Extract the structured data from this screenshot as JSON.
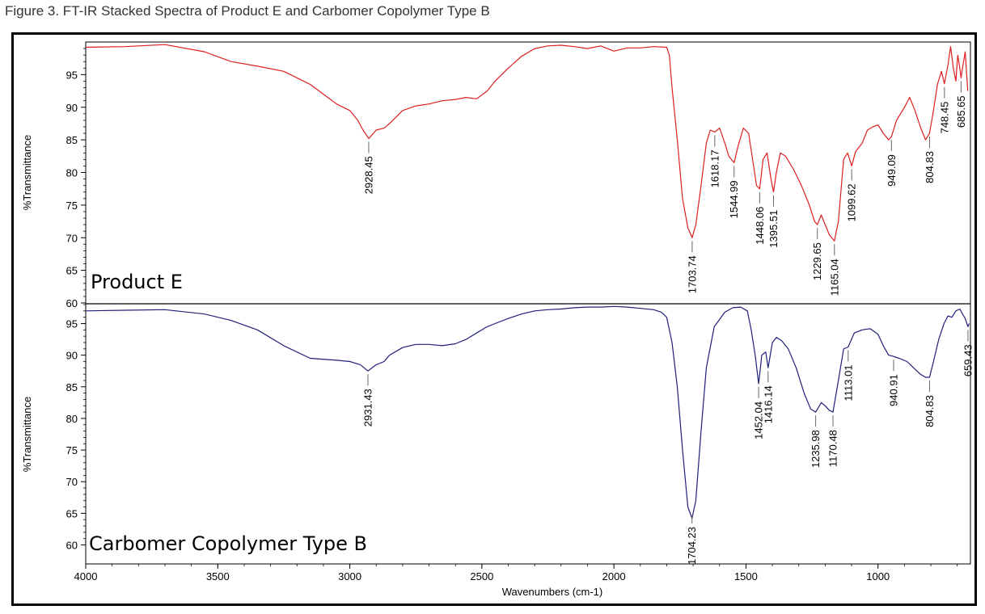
{
  "figure_title": "Figure 3. FT-IR Stacked Spectra of Product E and Carbomer Copolymer Type B",
  "chart_data": {
    "type": "line",
    "xlabel": "Wavenumbers (cm-1)",
    "xlim": [
      4000,
      650
    ],
    "x_ticks": [
      4000,
      3500,
      3000,
      2500,
      2000,
      1500,
      1000
    ],
    "x_tick_labels": [
      "4000",
      "3500",
      "3000",
      "2500",
      "2000",
      "1500",
      "1000"
    ],
    "panels": [
      {
        "label": "Product E",
        "ylabel": "%Transmittance",
        "ylim": [
          60,
          100
        ],
        "y_ticks": [
          60,
          65,
          70,
          75,
          80,
          85,
          90,
          95
        ],
        "y_tick_labels": [
          "60",
          "65",
          "70",
          "75",
          "80",
          "85",
          "90",
          "95"
        ],
        "color": "#dd1f1f",
        "series": {
          "x": [
            4000,
            3850,
            3700,
            3550,
            3450,
            3350,
            3250,
            3150,
            3050,
            3000,
            2970,
            2950,
            2928,
            2900,
            2870,
            2850,
            2800,
            2750,
            2700,
            2650,
            2600,
            2560,
            2520,
            2480,
            2450,
            2400,
            2350,
            2300,
            2250,
            2200,
            2150,
            2100,
            2050,
            2000,
            1980,
            1950,
            1900,
            1850,
            1800,
            1790,
            1780,
            1760,
            1740,
            1720,
            1703.74,
            1690,
            1670,
            1650,
            1635,
            1618.17,
            1600,
            1580,
            1565,
            1544.99,
            1530,
            1510,
            1490,
            1475,
            1460,
            1448.06,
            1435,
            1420,
            1405,
            1395.51,
            1385,
            1370,
            1350,
            1320,
            1290,
            1260,
            1240,
            1229.65,
            1215,
            1200,
            1185,
            1165.04,
            1150,
            1130,
            1115,
            1099.62,
            1085,
            1060,
            1040,
            1020,
            1000,
            980,
            960,
            949.09,
            930,
            900,
            880,
            860,
            840,
            820,
            804.83,
            790,
            775,
            760,
            748.45,
            735,
            725,
            715,
            705,
            698,
            690,
            685.65,
            680,
            670,
            660
          ],
          "values": [
            99.2,
            99.3,
            99.6,
            98.5,
            97.0,
            96.3,
            95.5,
            93.5,
            90.5,
            89.5,
            88.0,
            86.5,
            85.2,
            86.5,
            86.8,
            87.5,
            89.5,
            90.2,
            90.5,
            91.0,
            91.2,
            91.5,
            91.3,
            92.5,
            94.0,
            96.0,
            97.8,
            99.0,
            99.4,
            99.5,
            99.3,
            99.0,
            99.4,
            98.6,
            98.8,
            99.1,
            99.1,
            99.3,
            99.2,
            98.0,
            93.0,
            85.0,
            76.0,
            71.5,
            70.0,
            72.0,
            78.0,
            84.5,
            86.5,
            86.2,
            86.8,
            84.5,
            82.5,
            81.5,
            84.0,
            86.8,
            86.0,
            82.0,
            78.0,
            77.5,
            82.0,
            83.0,
            79.0,
            77.0,
            80.0,
            83.0,
            82.5,
            80.5,
            78.0,
            75.0,
            72.5,
            72.0,
            73.5,
            72.0,
            70.5,
            69.5,
            72.5,
            82.0,
            83.0,
            81.0,
            83.2,
            84.5,
            86.5,
            87.0,
            87.3,
            86.0,
            85.0,
            85.5,
            88.0,
            90.0,
            91.5,
            89.5,
            87.0,
            85.0,
            86.0,
            89.5,
            93.5,
            95.5,
            93.6,
            96.5,
            99.3,
            96.0,
            94.0,
            98.0,
            96.0,
            94.5,
            96.0,
            98.5,
            92.5
          ]
        },
        "peaks": [
          {
            "label": "2928.45",
            "x": 2928.45
          },
          {
            "label": "1703.74",
            "x": 1703.74
          },
          {
            "label": "1618.17",
            "x": 1618.17
          },
          {
            "label": "1544.99",
            "x": 1544.99
          },
          {
            "label": "1448.06",
            "x": 1448.06
          },
          {
            "label": "1395.51",
            "x": 1395.51
          },
          {
            "label": "1229.65",
            "x": 1229.65
          },
          {
            "label": "1165.04",
            "x": 1165.04
          },
          {
            "label": "1099.62",
            "x": 1099.62
          },
          {
            "label": "949.09",
            "x": 949.09
          },
          {
            "label": "804.83",
            "x": 804.83
          },
          {
            "label": "748.45",
            "x": 748.45
          },
          {
            "label": "685.65",
            "x": 685.65
          }
        ]
      },
      {
        "label": "Carbomer Copolymer Type B",
        "ylabel": "%Transmittance",
        "ylim": [
          57,
          98
        ],
        "y_ticks": [
          60,
          65,
          70,
          75,
          80,
          85,
          90,
          95
        ],
        "y_tick_labels": [
          "60",
          "65",
          "70",
          "75",
          "80",
          "85",
          "90",
          "95"
        ],
        "color": "#1f1f7a",
        "series": {
          "x": [
            4000,
            3850,
            3700,
            3550,
            3450,
            3350,
            3250,
            3150,
            3050,
            3000,
            2960,
            2931.43,
            2900,
            2870,
            2850,
            2800,
            2750,
            2700,
            2650,
            2600,
            2560,
            2520,
            2480,
            2450,
            2400,
            2350,
            2300,
            2250,
            2200,
            2150,
            2100,
            2050,
            2000,
            1950,
            1900,
            1850,
            1820,
            1800,
            1780,
            1760,
            1740,
            1720,
            1704.23,
            1690,
            1670,
            1650,
            1620,
            1580,
            1550,
            1520,
            1495,
            1480,
            1465,
            1452.04,
            1440,
            1425,
            1416.14,
            1400,
            1385,
            1365,
            1340,
            1310,
            1280,
            1255,
            1235.98,
            1215,
            1200,
            1185,
            1170.48,
            1150,
            1130,
            1113.01,
            1090,
            1060,
            1030,
            1000,
            980,
            960,
            940.91,
            920,
            890,
            860,
            840,
            820,
            804.83,
            790,
            770,
            750,
            735,
            720,
            705,
            690,
            680,
            670,
            659.43,
            655
          ],
          "values": [
            97.0,
            97.1,
            97.2,
            96.5,
            95.5,
            94.0,
            91.5,
            89.5,
            89.2,
            89.0,
            88.5,
            87.5,
            88.5,
            89.0,
            90.0,
            91.2,
            91.7,
            91.7,
            91.5,
            91.8,
            92.5,
            93.5,
            94.5,
            95.0,
            95.8,
            96.5,
            97.0,
            97.2,
            97.3,
            97.5,
            97.6,
            97.6,
            97.7,
            97.6,
            97.4,
            97.2,
            96.8,
            96.0,
            92.0,
            85.0,
            75.0,
            66.0,
            64.2,
            67.0,
            78.0,
            88.0,
            94.5,
            96.8,
            97.5,
            97.6,
            97.0,
            94.0,
            90.0,
            85.5,
            90.0,
            90.5,
            88.0,
            92.0,
            92.8,
            92.3,
            91.0,
            88.0,
            84.0,
            81.5,
            81.0,
            82.5,
            82.0,
            81.3,
            81.0,
            86.0,
            91.0,
            91.3,
            93.5,
            94.0,
            94.2,
            93.3,
            91.5,
            90.0,
            89.8,
            89.5,
            89.0,
            87.8,
            87.0,
            86.5,
            86.5,
            89.0,
            92.5,
            95.0,
            96.2,
            96.0,
            97.0,
            97.3,
            96.5,
            95.8,
            94.5,
            95.0
          ]
        },
        "peaks": [
          {
            "label": "2931.43",
            "x": 2931.43
          },
          {
            "label": "1704.23",
            "x": 1704.23
          },
          {
            "label": "1452.04",
            "x": 1452.04
          },
          {
            "label": "1416.14",
            "x": 1416.14
          },
          {
            "label": "1235.98",
            "x": 1235.98
          },
          {
            "label": "1170.48",
            "x": 1170.48
          },
          {
            "label": "1113.01",
            "x": 1113.01
          },
          {
            "label": "940.91",
            "x": 940.91
          },
          {
            "label": "804.83",
            "x": 804.83
          },
          {
            "label": "659.43",
            "x": 659.43
          }
        ]
      }
    ]
  }
}
